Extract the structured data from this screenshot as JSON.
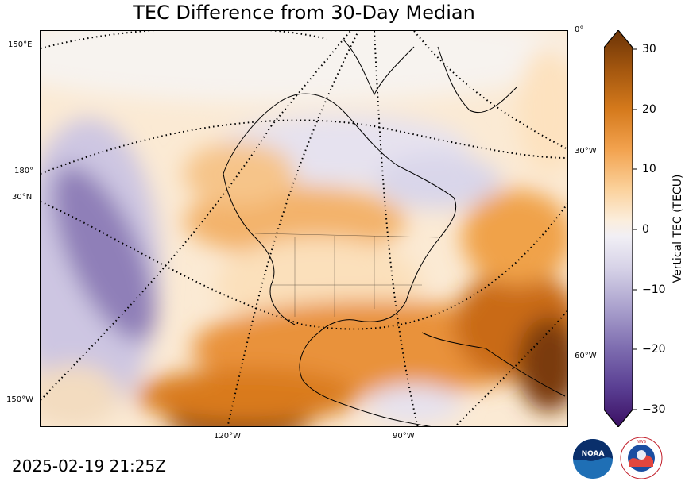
{
  "title": "TEC Difference from 30-Day Median",
  "timestamp": "2025-02-19 21:25Z",
  "colors": {
    "neg_strong": "#4a2a82",
    "neg_mid": "#8f7fb8",
    "neg_light": "#d9d6ea",
    "neutral": "#f7f5f2",
    "pos_light": "#fde2bf",
    "pos_mid": "#f0a24a",
    "pos_strong": "#d97a1e",
    "pos_dark": "#7a3b07"
  },
  "map": {
    "longitude_labels_left": [
      "150°E",
      "180°",
      "150°W"
    ],
    "latitude_labels_left": [
      "30°N"
    ],
    "longitude_labels_right": [
      "0°",
      "30°W",
      "60°W"
    ],
    "longitude_labels_bottom": [
      "120°W",
      "90°W"
    ]
  },
  "colorbar": {
    "label": "Vertical TEC (TECU)",
    "min": -30,
    "max": 30,
    "ticks": [
      "30",
      "20",
      "10",
      "0",
      "−10",
      "−20",
      "−30"
    ],
    "tick_values": [
      30,
      20,
      10,
      0,
      -10,
      -20,
      -30
    ]
  },
  "logos": {
    "noaa_text": "NOAA",
    "nws_text": "NATIONAL WEATHER SERVICE"
  }
}
